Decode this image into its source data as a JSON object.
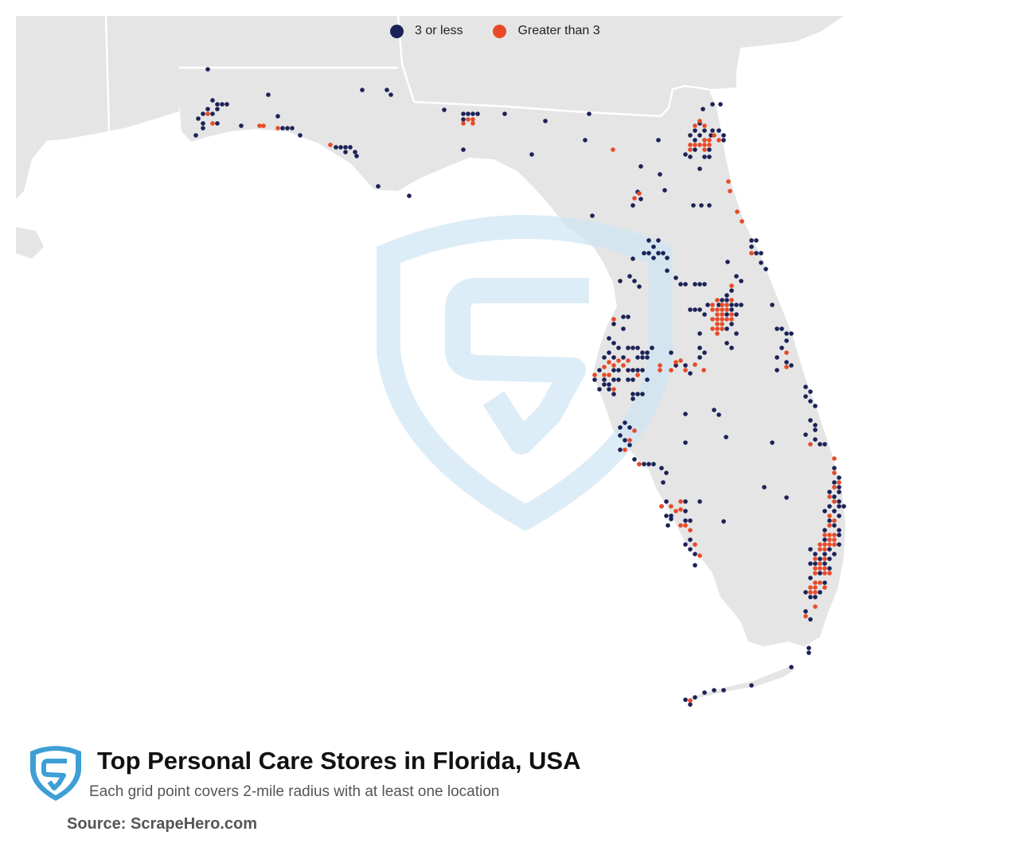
{
  "legend": {
    "items": [
      {
        "label": "3 or less",
        "color": "#1b2257"
      },
      {
        "label": "Greater than 3",
        "color": "#e84a27"
      }
    ]
  },
  "map": {
    "land_color": "#e5e5e5",
    "border_color": "#ffffff",
    "watermark_color": "#d5e9f5",
    "dots_low": [
      [
        261,
        87
      ],
      [
        267,
        126
      ],
      [
        273,
        131
      ],
      [
        279,
        131
      ],
      [
        285,
        131
      ],
      [
        261,
        137
      ],
      [
        273,
        137
      ],
      [
        255,
        143
      ],
      [
        267,
        143
      ],
      [
        249,
        149
      ],
      [
        255,
        155
      ],
      [
        273,
        155
      ],
      [
        255,
        161
      ],
      [
        246,
        170
      ],
      [
        303,
        158
      ],
      [
        337,
        119
      ],
      [
        349,
        146
      ],
      [
        355,
        161
      ],
      [
        361,
        161
      ],
      [
        367,
        161
      ],
      [
        377,
        170
      ],
      [
        422,
        185
      ],
      [
        428,
        185
      ],
      [
        434,
        185
      ],
      [
        440,
        185
      ],
      [
        434,
        191
      ],
      [
        446,
        191
      ],
      [
        448,
        196
      ],
      [
        455,
        113
      ],
      [
        486,
        113
      ],
      [
        491,
        119
      ],
      [
        475,
        234
      ],
      [
        514,
        246
      ],
      [
        558,
        138
      ],
      [
        582,
        143
      ],
      [
        588,
        143
      ],
      [
        594,
        143
      ],
      [
        600,
        143
      ],
      [
        582,
        150
      ],
      [
        582,
        188
      ],
      [
        634,
        143
      ],
      [
        685,
        152
      ],
      [
        740,
        143
      ],
      [
        735,
        176
      ],
      [
        668,
        194
      ],
      [
        827,
        176
      ],
      [
        805,
        209
      ],
      [
        829,
        219
      ],
      [
        835,
        239
      ],
      [
        801,
        241
      ],
      [
        795,
        258
      ],
      [
        805,
        250
      ],
      [
        871,
        258
      ],
      [
        881,
        258
      ],
      [
        891,
        258
      ],
      [
        895,
        131
      ],
      [
        905,
        131
      ],
      [
        883,
        137
      ],
      [
        879,
        155
      ],
      [
        873,
        164
      ],
      [
        885,
        164
      ],
      [
        895,
        164
      ],
      [
        903,
        164
      ],
      [
        867,
        170
      ],
      [
        879,
        170
      ],
      [
        893,
        170
      ],
      [
        909,
        170
      ],
      [
        873,
        176
      ],
      [
        885,
        176
      ],
      [
        873,
        188
      ],
      [
        891,
        188
      ],
      [
        861,
        194
      ],
      [
        867,
        197
      ],
      [
        885,
        197
      ],
      [
        891,
        197
      ],
      [
        879,
        212
      ],
      [
        909,
        176
      ],
      [
        944,
        302
      ],
      [
        950,
        302
      ],
      [
        944,
        310
      ],
      [
        950,
        318
      ],
      [
        956,
        318
      ],
      [
        956,
        330
      ],
      [
        962,
        338
      ],
      [
        914,
        329
      ],
      [
        744,
        271
      ],
      [
        815,
        302
      ],
      [
        827,
        302
      ],
      [
        821,
        310
      ],
      [
        809,
        318
      ],
      [
        815,
        318
      ],
      [
        827,
        318
      ],
      [
        833,
        318
      ],
      [
        838,
        324
      ],
      [
        795,
        325
      ],
      [
        821,
        324
      ],
      [
        838,
        340
      ],
      [
        791,
        347
      ],
      [
        797,
        353
      ],
      [
        803,
        360
      ],
      [
        779,
        353
      ],
      [
        849,
        349
      ],
      [
        861,
        357
      ],
      [
        873,
        357
      ],
      [
        879,
        357
      ],
      [
        855,
        357
      ],
      [
        885,
        357
      ],
      [
        925,
        347
      ],
      [
        931,
        353
      ],
      [
        919,
        365
      ],
      [
        913,
        371
      ],
      [
        907,
        377
      ],
      [
        913,
        377
      ],
      [
        919,
        383
      ],
      [
        925,
        383
      ],
      [
        931,
        383
      ],
      [
        919,
        389
      ],
      [
        925,
        395
      ],
      [
        867,
        389
      ],
      [
        873,
        389
      ],
      [
        879,
        389
      ],
      [
        885,
        395
      ],
      [
        889,
        383
      ],
      [
        903,
        383
      ],
      [
        913,
        395
      ],
      [
        919,
        407
      ],
      [
        913,
        413
      ],
      [
        925,
        419
      ],
      [
        913,
        431
      ],
      [
        919,
        437
      ],
      [
        879,
        419
      ],
      [
        879,
        437
      ],
      [
        885,
        443
      ],
      [
        879,
        449
      ],
      [
        970,
        383
      ],
      [
        976,
        413
      ],
      [
        982,
        413
      ],
      [
        988,
        419
      ],
      [
        994,
        419
      ],
      [
        988,
        428
      ],
      [
        982,
        437
      ],
      [
        976,
        449
      ],
      [
        988,
        455
      ],
      [
        994,
        459
      ],
      [
        976,
        465
      ],
      [
        783,
        398
      ],
      [
        789,
        398
      ],
      [
        771,
        407
      ],
      [
        783,
        413
      ],
      [
        765,
        425
      ],
      [
        771,
        431
      ],
      [
        777,
        437
      ],
      [
        789,
        437
      ],
      [
        795,
        437
      ],
      [
        801,
        437
      ],
      [
        807,
        443
      ],
      [
        813,
        443
      ],
      [
        819,
        437
      ],
      [
        765,
        443
      ],
      [
        759,
        449
      ],
      [
        771,
        449
      ],
      [
        783,
        449
      ],
      [
        801,
        449
      ],
      [
        807,
        449
      ],
      [
        813,
        449
      ],
      [
        753,
        465
      ],
      [
        771,
        465
      ],
      [
        777,
        465
      ],
      [
        789,
        465
      ],
      [
        795,
        465
      ],
      [
        801,
        465
      ],
      [
        807,
        465
      ],
      [
        747,
        477
      ],
      [
        759,
        477
      ],
      [
        771,
        477
      ],
      [
        777,
        477
      ],
      [
        789,
        477
      ],
      [
        795,
        477
      ],
      [
        813,
        477
      ],
      [
        759,
        483
      ],
      [
        765,
        483
      ],
      [
        753,
        489
      ],
      [
        765,
        489
      ],
      [
        771,
        495
      ],
      [
        795,
        495
      ],
      [
        801,
        495
      ],
      [
        807,
        495
      ],
      [
        795,
        501
      ],
      [
        843,
        443
      ],
      [
        849,
        459
      ],
      [
        861,
        459
      ],
      [
        867,
        469
      ],
      [
        861,
        520
      ],
      [
        861,
        556
      ],
      [
        897,
        515
      ],
      [
        903,
        521
      ],
      [
        912,
        549
      ],
      [
        909,
        655
      ],
      [
        970,
        556
      ],
      [
        960,
        612
      ],
      [
        988,
        625
      ],
      [
        1012,
        486
      ],
      [
        1018,
        492
      ],
      [
        1012,
        498
      ],
      [
        1018,
        504
      ],
      [
        1024,
        510
      ],
      [
        1018,
        528
      ],
      [
        1024,
        534
      ],
      [
        1024,
        540
      ],
      [
        1012,
        546
      ],
      [
        1024,
        552
      ],
      [
        1030,
        558
      ],
      [
        1036,
        558
      ],
      [
        1048,
        588
      ],
      [
        1054,
        600
      ],
      [
        1048,
        606
      ],
      [
        1054,
        612
      ],
      [
        1042,
        618
      ],
      [
        1054,
        618
      ],
      [
        1048,
        624
      ],
      [
        1054,
        630
      ],
      [
        1042,
        636
      ],
      [
        1054,
        636
      ],
      [
        1060,
        636
      ],
      [
        1036,
        642
      ],
      [
        1048,
        642
      ],
      [
        1054,
        648
      ],
      [
        1042,
        654
      ],
      [
        1048,
        660
      ],
      [
        1054,
        666
      ],
      [
        1036,
        666
      ],
      [
        1054,
        672
      ],
      [
        1036,
        678
      ],
      [
        1054,
        684
      ],
      [
        1018,
        690
      ],
      [
        1042,
        690
      ],
      [
        1024,
        696
      ],
      [
        1036,
        696
      ],
      [
        1048,
        696
      ],
      [
        1030,
        702
      ],
      [
        1042,
        702
      ],
      [
        1018,
        708
      ],
      [
        1024,
        708
      ],
      [
        1036,
        708
      ],
      [
        1042,
        714
      ],
      [
        1030,
        720
      ],
      [
        1018,
        726
      ],
      [
        1036,
        732
      ],
      [
        1012,
        744
      ],
      [
        1030,
        744
      ],
      [
        1018,
        750
      ],
      [
        1024,
        750
      ],
      [
        1012,
        768
      ],
      [
        1018,
        778
      ],
      [
        1016,
        814
      ],
      [
        1016,
        820
      ],
      [
        994,
        838
      ],
      [
        944,
        861
      ],
      [
        909,
        867
      ],
      [
        897,
        867
      ],
      [
        861,
        879
      ],
      [
        867,
        885
      ],
      [
        873,
        876
      ],
      [
        885,
        870
      ],
      [
        837,
        630
      ],
      [
        831,
        636
      ],
      [
        837,
        648
      ],
      [
        843,
        648
      ],
      [
        861,
        630
      ],
      [
        861,
        642
      ],
      [
        843,
        652
      ],
      [
        861,
        654
      ],
      [
        867,
        654
      ],
      [
        879,
        630
      ],
      [
        867,
        678
      ],
      [
        873,
        696
      ],
      [
        861,
        684
      ],
      [
        867,
        690
      ],
      [
        873,
        710
      ],
      [
        839,
        660
      ],
      [
        831,
        588
      ],
      [
        837,
        594
      ],
      [
        833,
        606
      ],
      [
        785,
        531
      ],
      [
        779,
        537
      ],
      [
        791,
        537
      ],
      [
        779,
        547
      ],
      [
        785,
        553
      ],
      [
        791,
        559
      ],
      [
        797,
        577
      ],
      [
        803,
        583
      ],
      [
        779,
        565
      ],
      [
        809,
        583
      ],
      [
        815,
        583
      ],
      [
        821,
        583
      ]
    ],
    "dots_high": [
      [
        261,
        143
      ],
      [
        267,
        155
      ],
      [
        326,
        158
      ],
      [
        331,
        158
      ],
      [
        349,
        161
      ],
      [
        415,
        182
      ],
      [
        588,
        150
      ],
      [
        594,
        150
      ],
      [
        582,
        155
      ],
      [
        594,
        155
      ],
      [
        770,
        188
      ],
      [
        797,
        249
      ],
      [
        803,
        243
      ],
      [
        879,
        152
      ],
      [
        873,
        158
      ],
      [
        885,
        158
      ],
      [
        867,
        182
      ],
      [
        873,
        182
      ],
      [
        885,
        176
      ],
      [
        891,
        176
      ],
      [
        879,
        182
      ],
      [
        885,
        182
      ],
      [
        891,
        182
      ],
      [
        867,
        188
      ],
      [
        885,
        188
      ],
      [
        897,
        170
      ],
      [
        903,
        176
      ],
      [
        915,
        228
      ],
      [
        917,
        240
      ],
      [
        926,
        266
      ],
      [
        932,
        278
      ],
      [
        944,
        318
      ],
      [
        919,
        359
      ],
      [
        901,
        377
      ],
      [
        919,
        377
      ],
      [
        895,
        383
      ],
      [
        907,
        383
      ],
      [
        913,
        383
      ],
      [
        895,
        389
      ],
      [
        901,
        389
      ],
      [
        907,
        389
      ],
      [
        913,
        389
      ],
      [
        919,
        395
      ],
      [
        901,
        395
      ],
      [
        907,
        395
      ],
      [
        895,
        401
      ],
      [
        901,
        401
      ],
      [
        907,
        401
      ],
      [
        913,
        401
      ],
      [
        919,
        401
      ],
      [
        901,
        407
      ],
      [
        907,
        407
      ],
      [
        895,
        413
      ],
      [
        901,
        413
      ],
      [
        907,
        413
      ],
      [
        901,
        419
      ],
      [
        988,
        443
      ],
      [
        988,
        461
      ],
      [
        771,
        401
      ],
      [
        759,
        461
      ],
      [
        759,
        471
      ],
      [
        765,
        455
      ],
      [
        777,
        453
      ],
      [
        783,
        459
      ],
      [
        789,
        453
      ],
      [
        771,
        459
      ],
      [
        801,
        471
      ],
      [
        747,
        471
      ],
      [
        765,
        471
      ],
      [
        771,
        489
      ],
      [
        829,
        459
      ],
      [
        829,
        465
      ],
      [
        843,
        465
      ],
      [
        849,
        455
      ],
      [
        855,
        453
      ],
      [
        861,
        465
      ],
      [
        873,
        458
      ],
      [
        884,
        465
      ],
      [
        1018,
        558
      ],
      [
        1048,
        576
      ],
      [
        1048,
        594
      ],
      [
        1054,
        606
      ],
      [
        1048,
        612
      ],
      [
        1042,
        624
      ],
      [
        1048,
        630
      ],
      [
        1042,
        648
      ],
      [
        1048,
        654
      ],
      [
        1042,
        660
      ],
      [
        1036,
        672
      ],
      [
        1042,
        672
      ],
      [
        1048,
        672
      ],
      [
        1042,
        678
      ],
      [
        1048,
        678
      ],
      [
        1030,
        684
      ],
      [
        1036,
        684
      ],
      [
        1042,
        684
      ],
      [
        1048,
        684
      ],
      [
        1036,
        690
      ],
      [
        1030,
        690
      ],
      [
        1024,
        702
      ],
      [
        1036,
        702
      ],
      [
        1030,
        708
      ],
      [
        1024,
        714
      ],
      [
        1030,
        714
      ],
      [
        1036,
        714
      ],
      [
        1024,
        720
      ],
      [
        1036,
        720
      ],
      [
        1042,
        720
      ],
      [
        1024,
        732
      ],
      [
        1030,
        732
      ],
      [
        1018,
        738
      ],
      [
        1024,
        738
      ],
      [
        1036,
        738
      ],
      [
        1018,
        744
      ],
      [
        1024,
        744
      ],
      [
        1012,
        774
      ],
      [
        1024,
        762
      ],
      [
        803,
        583
      ],
      [
        791,
        553
      ],
      [
        785,
        565
      ],
      [
        797,
        541
      ],
      [
        855,
        630
      ],
      [
        843,
        636
      ],
      [
        849,
        642
      ],
      [
        855,
        640
      ],
      [
        861,
        660
      ],
      [
        867,
        666
      ],
      [
        873,
        684
      ],
      [
        879,
        698
      ],
      [
        867,
        880
      ],
      [
        855,
        660
      ],
      [
        831,
        636
      ]
    ]
  },
  "footer": {
    "title": "Top Personal Care Stores in Florida, USA",
    "subtitle": "Each grid point covers 2-mile radius with at least one location",
    "source": "Source: ScrapeHero.com"
  }
}
